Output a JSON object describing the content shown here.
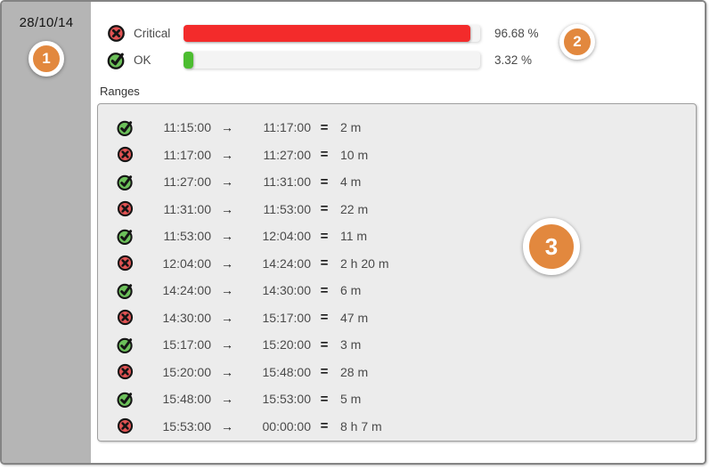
{
  "sidebar": {
    "date": "28/10/14"
  },
  "badges": [
    {
      "label": "1"
    },
    {
      "label": "2"
    },
    {
      "label": "3"
    }
  ],
  "summary": {
    "rows": [
      {
        "status": "critical",
        "label": "Critical",
        "percent": 96.68,
        "percent_label": "96.68 %",
        "color": "#f32b2b"
      },
      {
        "status": "ok",
        "label": "OK",
        "percent": 3.32,
        "percent_label": "3.32 %",
        "color": "#4cbd30"
      }
    ]
  },
  "ranges": {
    "title": "Ranges",
    "arrow": "→",
    "equals": "=",
    "rows": [
      {
        "status": "ok",
        "start": "11:15:00",
        "end": "11:17:00",
        "duration": "2 m"
      },
      {
        "status": "critical",
        "start": "11:17:00",
        "end": "11:27:00",
        "duration": "10 m"
      },
      {
        "status": "ok",
        "start": "11:27:00",
        "end": "11:31:00",
        "duration": "4 m"
      },
      {
        "status": "critical",
        "start": "11:31:00",
        "end": "11:53:00",
        "duration": "22 m"
      },
      {
        "status": "ok",
        "start": "11:53:00",
        "end": "12:04:00",
        "duration": "11 m"
      },
      {
        "status": "critical",
        "start": "12:04:00",
        "end": "14:24:00",
        "duration": "2 h 20 m"
      },
      {
        "status": "ok",
        "start": "14:24:00",
        "end": "14:30:00",
        "duration": "6 m"
      },
      {
        "status": "critical",
        "start": "14:30:00",
        "end": "15:17:00",
        "duration": "47 m"
      },
      {
        "status": "ok",
        "start": "15:17:00",
        "end": "15:20:00",
        "duration": "3 m"
      },
      {
        "status": "critical",
        "start": "15:20:00",
        "end": "15:48:00",
        "duration": "28 m"
      },
      {
        "status": "ok",
        "start": "15:48:00",
        "end": "15:53:00",
        "duration": "5 m"
      },
      {
        "status": "critical",
        "start": "15:53:00",
        "end": "00:00:00",
        "duration": "8 h 7 m"
      }
    ]
  },
  "colors": {
    "accent_orange": "#e2883e",
    "bar_red": "#f32b2b",
    "bar_green": "#4cbd30",
    "icon_red": "#e25353",
    "icon_green": "#6cc05a",
    "sidebar_gray": "#b5b5b5",
    "panel_gray": "#ececec"
  }
}
